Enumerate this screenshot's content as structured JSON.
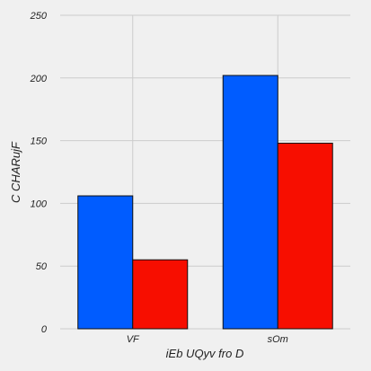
{
  "chart_data": {
    "type": "bar",
    "title": "",
    "xlabel": "iEb UQyv fro D",
    "ylabel": "C CHARujF",
    "categories": [
      "VF",
      "sOm"
    ],
    "series": [
      {
        "values": [
          106,
          202
        ],
        "color": "#005cff"
      },
      {
        "values": [
          55,
          148
        ],
        "color": "#f70e00"
      }
    ],
    "ylim": [
      0,
      250
    ],
    "yticks": [
      0,
      50,
      100,
      150,
      200,
      250
    ],
    "grid": true,
    "legend": "none",
    "background": "#f0f0f0"
  }
}
